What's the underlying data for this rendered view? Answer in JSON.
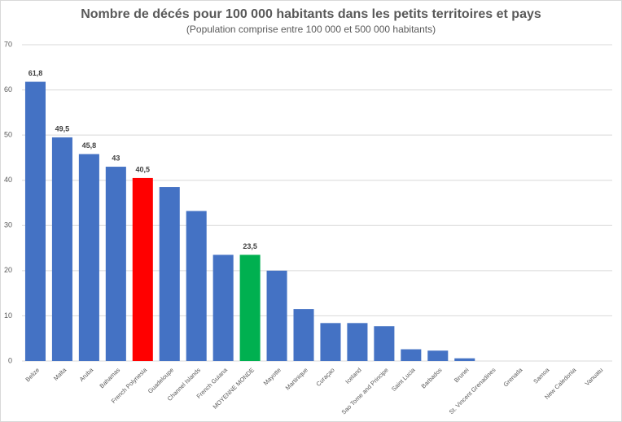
{
  "chart_data": {
    "type": "bar",
    "title": "Nombre de décés pour 100 000 habitants dans les petits territoires et pays",
    "subtitle": "(Population comprise entre 100 000 et 500 000 habitants)",
    "categories": [
      "Belize",
      "Malta",
      "Aruba",
      "Bahamas",
      "French Polynesia",
      "Guadeloupe",
      "Channel Islands",
      "French Guiana",
      "MOYENNE MONDE",
      "Mayotte",
      "Martinique",
      "Curaçao",
      "Iceland",
      "Sao Tome and Principe",
      "Saint Lucia",
      "Barbados",
      "Brunei",
      "St. Vincent Grenadines",
      "Grenada",
      "Samoa",
      "New Caledonia",
      "Vanuatu"
    ],
    "values": [
      61.8,
      49.5,
      45.8,
      43,
      40.5,
      38.5,
      33.2,
      23.5,
      23.5,
      20,
      11.5,
      8.4,
      8.4,
      7.7,
      2.6,
      2.3,
      0.6,
      0,
      0,
      0,
      0,
      0
    ],
    "value_labels": [
      "61,8",
      "49,5",
      "45,8",
      "43",
      "40,5",
      null,
      null,
      null,
      "23,5",
      null,
      null,
      null,
      null,
      null,
      null,
      null,
      null,
      null,
      null,
      null,
      null,
      null
    ],
    "colors": [
      "#4472c4",
      "#4472c4",
      "#4472c4",
      "#4472c4",
      "#ff0000",
      "#4472c4",
      "#4472c4",
      "#4472c4",
      "#00b050",
      "#4472c4",
      "#4472c4",
      "#4472c4",
      "#4472c4",
      "#4472c4",
      "#4472c4",
      "#4472c4",
      "#4472c4",
      "#4472c4",
      "#4472c4",
      "#4472c4",
      "#4472c4",
      "#4472c4"
    ],
    "ylim": [
      0,
      70
    ],
    "yticks": [
      0,
      10,
      20,
      30,
      40,
      50,
      60,
      70
    ],
    "grid": true
  }
}
